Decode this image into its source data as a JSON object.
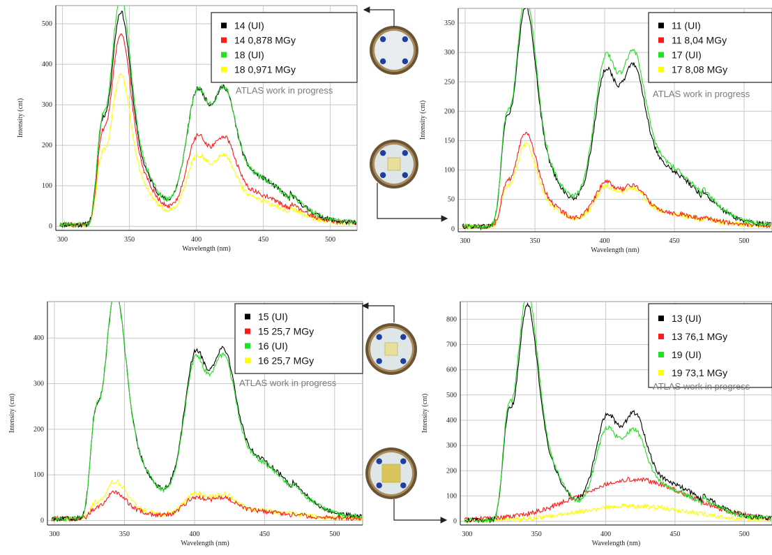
{
  "colors": {
    "black": "#000000",
    "red": "#ff1a1a",
    "green": "#22e022",
    "yellow": "#ffff00",
    "grid": "#c8c8c8",
    "note": "#7a7a7a"
  },
  "photos": [
    {
      "name": "sample-photo-unirradiated-1",
      "icon": "sample-disc-icon",
      "variant": "blue-dots"
    },
    {
      "name": "sample-photo-irradiated-1",
      "icon": "sample-disc-icon",
      "variant": "yellow-square-small"
    },
    {
      "name": "sample-photo-irradiated-2",
      "icon": "sample-disc-icon",
      "variant": "yellow-square-small"
    },
    {
      "name": "sample-photo-irradiated-3",
      "icon": "sample-disc-icon",
      "variant": "yellow-square-large"
    }
  ],
  "chart_data": [
    {
      "type": "line",
      "xlabel": "Wavelength (nm)",
      "ylabel": "Intensity (cnt)",
      "xlim": [
        295,
        520
      ],
      "ylim": [
        -10,
        545
      ],
      "xticks": [
        300,
        350,
        400,
        450,
        500
      ],
      "yticks": [
        0,
        100,
        200,
        300,
        400,
        500
      ],
      "grid": true,
      "legend": "top-right",
      "annotation": "ATLAS work in progress",
      "series": [
        {
          "name": "14 (UI)",
          "color": "black",
          "peaks": [
            [
              328,
              345
            ],
            [
              342,
              500
            ],
            [
              400,
              350
            ],
            [
              420,
              318
            ]
          ]
        },
        {
          "name": "14 0,878 MGy",
          "color": "red",
          "peaks": [
            [
              328,
              300
            ],
            [
              342,
              450
            ],
            [
              400,
              230
            ],
            [
              420,
              200
            ]
          ]
        },
        {
          "name": "18 (UI)",
          "color": "green",
          "peaks": [
            [
              328,
              345
            ],
            [
              342,
              535
            ],
            [
              400,
              350
            ],
            [
              420,
              318
            ]
          ]
        },
        {
          "name": "18  0,971 MGy",
          "color": "yellow",
          "peaks": [
            [
              328,
              235
            ],
            [
              342,
              350
            ],
            [
              400,
              180
            ],
            [
              420,
              160
            ]
          ]
        }
      ]
    },
    {
      "type": "line",
      "xlabel": "Wavelength (nm)",
      "ylabel": "Intensity (cnt)",
      "xlim": [
        295,
        520
      ],
      "ylim": [
        -5,
        375
      ],
      "xticks": [
        300,
        350,
        400,
        450,
        500
      ],
      "yticks": [
        0,
        50,
        100,
        150,
        200,
        250,
        300,
        350
      ],
      "grid": true,
      "legend": "top-right",
      "annotation": "ATLAS work in progress",
      "series": [
        {
          "name": "11 (UI)",
          "color": "black",
          "peaks": [
            [
              328,
              245
            ],
            [
              342,
              355
            ],
            [
              400,
              280
            ],
            [
              420,
              260
            ]
          ]
        },
        {
          "name": "11 8,04 MGy",
          "color": "red",
          "peaks": [
            [
              328,
              95
            ],
            [
              342,
              152
            ],
            [
              400,
              78
            ],
            [
              420,
              62
            ]
          ]
        },
        {
          "name": "17 (UI)",
          "color": "green",
          "peaks": [
            [
              328,
              255
            ],
            [
              342,
              370
            ],
            [
              400,
              305
            ],
            [
              420,
              280
            ]
          ]
        },
        {
          "name": "17  8,08 MGy",
          "color": "yellow",
          "peaks": [
            [
              328,
              85
            ],
            [
              342,
              132
            ],
            [
              400,
              72
            ],
            [
              420,
              58
            ]
          ]
        }
      ]
    },
    {
      "type": "line",
      "xlabel": "Wavelength (nm)",
      "ylabel": "Intensity (cnt)",
      "xlim": [
        295,
        520
      ],
      "ylim": [
        -10,
        480
      ],
      "xticks": [
        300,
        350,
        400,
        450,
        500
      ],
      "yticks": [
        0,
        100,
        200,
        300,
        400
      ],
      "grid": true,
      "legend": "top-right",
      "annotation": "ATLAS work in progress",
      "series": [
        {
          "name": "15 (UI)",
          "color": "black",
          "peaks": [
            [
              328,
              325
            ],
            [
              342,
              475
            ],
            [
              400,
              385
            ],
            [
              420,
              350
            ]
          ]
        },
        {
          "name": "15 25,7 MGy",
          "color": "red",
          "peaks": [
            [
              328,
              30
            ],
            [
              342,
              55
            ],
            [
              400,
              50
            ],
            [
              420,
              42
            ]
          ]
        },
        {
          "name": "16 (UI)",
          "color": "green",
          "peaks": [
            [
              328,
              325
            ],
            [
              342,
              475
            ],
            [
              400,
              370
            ],
            [
              420,
              335
            ]
          ]
        },
        {
          "name": "16  25,7 MGy",
          "color": "yellow",
          "peaks": [
            [
              328,
              45
            ],
            [
              342,
              78
            ],
            [
              400,
              58
            ],
            [
              420,
              48
            ]
          ]
        }
      ]
    },
    {
      "type": "line",
      "xlabel": "Wavelength (nm)",
      "ylabel": "Intensity (cnt)",
      "xlim": [
        295,
        520
      ],
      "ylim": [
        -15,
        870
      ],
      "xticks": [
        300,
        350,
        400,
        450,
        500
      ],
      "yticks": [
        0,
        100,
        200,
        300,
        400,
        500,
        600,
        700,
        800
      ],
      "grid": true,
      "legend": "top-right",
      "annotation": "ATLAS work in progress",
      "series": [
        {
          "name": "13 (UI)",
          "color": "black",
          "peaks": [
            [
              328,
              575
            ],
            [
              342,
              810
            ],
            [
              400,
              440
            ],
            [
              420,
              395
            ]
          ]
        },
        {
          "name": "13 76,1 MGy",
          "color": "red",
          "peaks": [
            [
              420,
              160
            ]
          ]
        },
        {
          "name": "19 (UI)",
          "color": "green",
          "peaks": [
            [
              328,
              600
            ],
            [
              342,
              860
            ],
            [
              400,
              385
            ],
            [
              420,
              330
            ]
          ]
        },
        {
          "name": "19  73,1 MGy",
          "color": "yellow",
          "peaks": [
            [
              420,
              58
            ]
          ]
        }
      ]
    }
  ]
}
